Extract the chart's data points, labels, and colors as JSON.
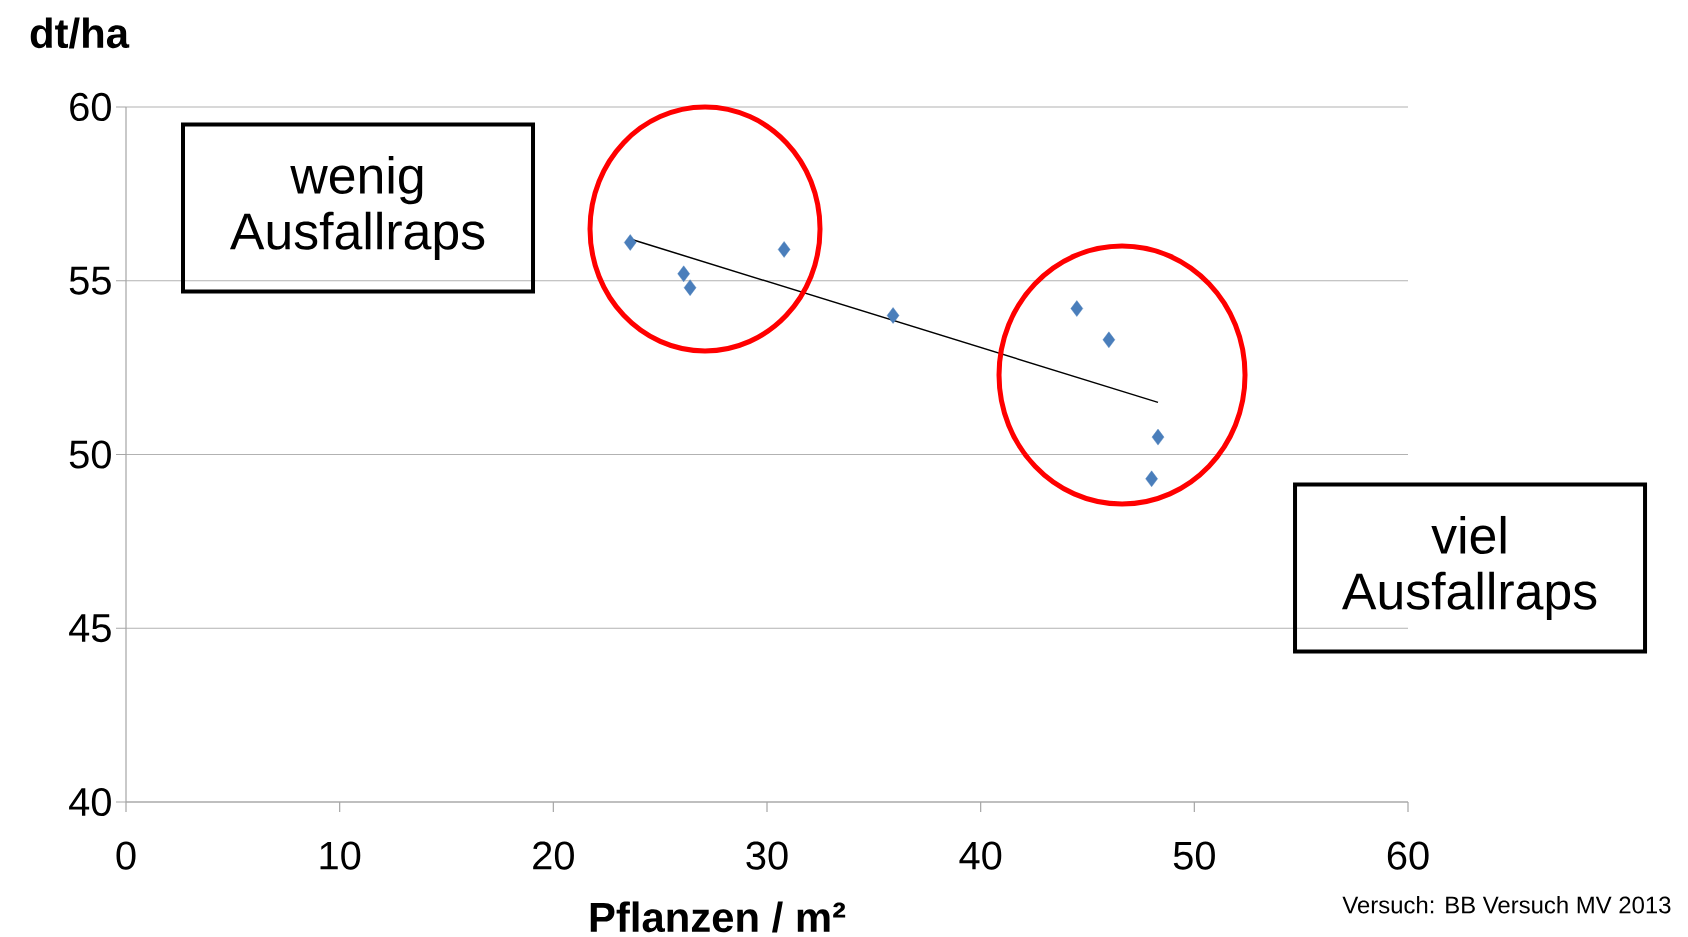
{
  "chart_data": {
    "type": "scatter",
    "ylabel": "dt/ha",
    "xlabel": "Pflanzen / m²",
    "xlim": [
      0,
      60
    ],
    "xticks": [
      0,
      10,
      20,
      30,
      40,
      50,
      60
    ],
    "ylim": [
      40,
      60
    ],
    "yticks": [
      40,
      45,
      50,
      55,
      60
    ],
    "grid": "y",
    "series": [
      {
        "marker": "diamond",
        "color": "#4a7ebb",
        "x": [
          23.6,
          26.1,
          26.4,
          30.8,
          35.9,
          44.5,
          46.0,
          48.3,
          48.0
        ],
        "values": [
          56.1,
          55.2,
          54.8,
          55.9,
          54.0,
          54.2,
          53.3,
          50.5,
          49.3
        ]
      },
      {
        "type": "line",
        "marker": "none",
        "color": "#000000",
        "x": [
          23.6,
          48.3
        ],
        "values": [
          56.2,
          51.5
        ]
      }
    ],
    "annotations": [
      "wenig Ausfallraps",
      "viel Ausfallraps",
      "Versuch: BB Versuch MV 2013"
    ]
  }
}
